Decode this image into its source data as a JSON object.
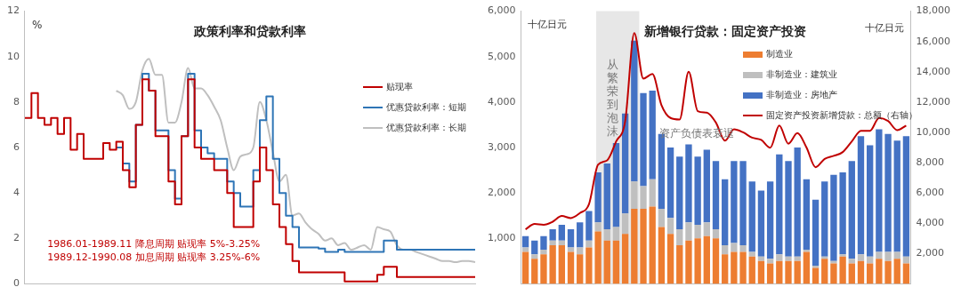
{
  "chart_data": [
    {
      "type": "step",
      "title": "政策利率和贷款利率",
      "ylabel": "%",
      "categories": [
        null,
        null,
        null,
        null,
        null,
        null,
        null,
        null,
        null,
        null,
        null,
        null,
        null,
        null,
        null,
        null,
        null,
        null,
        null,
        null,
        null,
        null,
        null,
        null,
        null,
        null,
        null,
        null,
        null,
        null,
        null,
        null,
        null,
        null,
        null,
        null,
        null,
        null,
        null,
        null,
        null,
        null,
        null,
        null,
        null,
        null,
        null,
        null,
        null,
        null,
        null,
        null,
        null,
        null,
        null,
        null,
        null,
        null,
        null,
        null,
        null,
        null,
        null,
        null,
        null,
        null,
        null,
        null,
        null,
        null
      ],
      "series": [
        {
          "name": "贴现率",
          "color": "#c00000",
          "values": [
            7.3,
            8.4,
            7.3,
            7.0,
            7.3,
            6.6,
            7.3,
            5.9,
            6.6,
            5.5,
            5.5,
            5.5,
            6.2,
            5.9,
            6.25,
            5.0,
            4.25,
            7.0,
            9.0,
            8.5,
            6.5,
            6.5,
            4.5,
            3.5,
            6.5,
            9.0,
            6.0,
            5.5,
            5.5,
            5.0,
            5.0,
            4.0,
            2.5,
            2.5,
            2.5,
            4.5,
            6.0,
            5.0,
            3.5,
            2.5,
            1.75,
            1.0,
            0.5,
            0.5,
            0.5,
            0.5,
            0.5,
            0.5,
            0.5,
            0.1,
            0.1,
            0.1,
            0.1,
            0.1,
            0.4,
            0.75,
            0.75,
            0.3,
            0.3,
            0.3,
            0.3,
            0.3,
            0.3,
            0.3,
            0.3,
            0.3,
            0.3,
            0.3,
            0.3,
            0.3
          ]
        },
        {
          "name": "优惠贷款利率：短期",
          "color": "#2e75b6",
          "values": [
            null,
            null,
            null,
            null,
            null,
            null,
            null,
            null,
            null,
            null,
            null,
            null,
            null,
            null,
            6.0,
            5.3,
            4.5,
            7.0,
            9.25,
            8.5,
            6.75,
            6.75,
            5.0,
            3.75,
            6.5,
            9.25,
            6.75,
            6.0,
            5.75,
            5.5,
            5.5,
            4.5,
            4.0,
            3.4,
            3.4,
            5.0,
            7.2,
            8.25,
            5.5,
            4.0,
            3.0,
            2.5,
            1.6,
            1.6,
            1.6,
            1.55,
            1.4,
            1.4,
            1.5,
            1.4,
            1.4,
            1.4,
            1.4,
            1.4,
            1.4,
            1.9,
            1.9,
            1.5,
            1.5,
            1.5,
            1.5,
            1.5,
            1.5,
            1.5,
            1.5,
            1.5,
            1.5,
            1.5,
            1.5,
            1.5
          ]
        },
        {
          "name": "优惠贷款利率：长期",
          "type": "line",
          "color": "#bfbfbf",
          "values": [
            null,
            null,
            null,
            null,
            null,
            null,
            null,
            null,
            null,
            null,
            null,
            null,
            null,
            null,
            8.5,
            8.3,
            7.7,
            8.0,
            9.4,
            9.9,
            9.2,
            9.2,
            7.1,
            7.1,
            8.0,
            9.5,
            8.6,
            8.6,
            8.3,
            7.8,
            7.2,
            6.0,
            5.0,
            5.6,
            5.7,
            6.0,
            8.0,
            7.2,
            5.8,
            4.5,
            4.8,
            3.0,
            3.1,
            2.7,
            2.4,
            2.2,
            1.9,
            2.0,
            1.7,
            1.8,
            1.5,
            1.6,
            1.7,
            1.5,
            2.5,
            2.4,
            2.3,
            1.7,
            1.5,
            1.5,
            1.4,
            1.3,
            1.2,
            1.1,
            1.0,
            1.0,
            0.95,
            1.0,
            1.0,
            0.95
          ]
        }
      ],
      "ylim": [
        0,
        12
      ],
      "yticks": [
        0,
        2,
        4,
        6,
        8,
        10,
        12
      ],
      "grid": false,
      "legend": "right",
      "marker": "none",
      "annotations": [
        "1986.01-1989.11 降息周期 贴现率 5%-3.25%",
        "1989.12-1990.08 加息周期 贴现率 3.25%-6%"
      ]
    },
    {
      "type": "bar",
      "title": "新增银行贷款：固定资产投资",
      "ylabel": "十亿日元",
      "y2label": "十亿日元",
      "stacked": true,
      "categories": [
        null,
        null,
        null,
        null,
        null,
        null,
        null,
        null,
        null,
        null,
        null,
        null,
        null,
        null,
        null,
        null,
        null,
        null,
        null,
        null,
        null,
        null,
        null,
        null,
        null,
        null,
        null,
        null,
        null,
        null,
        null,
        null,
        null,
        null,
        null,
        null,
        null,
        null,
        null,
        null,
        null,
        null,
        null
      ],
      "series": [
        {
          "name": "制造业",
          "color": "#ed7d31",
          "values": [
            700,
            550,
            650,
            850,
            850,
            700,
            650,
            800,
            1150,
            950,
            950,
            1100,
            1650,
            1650,
            1700,
            1250,
            1100,
            850,
            950,
            1000,
            1050,
            1000,
            650,
            700,
            700,
            600,
            500,
            450,
            500,
            500,
            500,
            700,
            350,
            550,
            450,
            600,
            450,
            500,
            450,
            550,
            500,
            550,
            450
          ]
        },
        {
          "name": "非制造业：建筑业",
          "color": "#bfbfbf",
          "values": [
            100,
            100,
            100,
            100,
            100,
            100,
            150,
            150,
            200,
            250,
            300,
            450,
            600,
            500,
            600,
            400,
            350,
            350,
            400,
            300,
            300,
            200,
            200,
            200,
            150,
            100,
            100,
            100,
            150,
            100,
            100,
            50,
            50,
            50,
            50,
            50,
            100,
            150,
            150,
            150,
            200,
            150,
            150
          ]
        },
        {
          "name": "非制造业：房地产",
          "color": "#4472c4",
          "values": [
            250,
            300,
            300,
            250,
            350,
            400,
            550,
            650,
            1100,
            1450,
            1850,
            2200,
            3100,
            2050,
            1950,
            1650,
            1550,
            1600,
            1720,
            1500,
            1600,
            1500,
            1450,
            1800,
            1850,
            1550,
            1450,
            1700,
            2200,
            2100,
            2400,
            1550,
            1450,
            1650,
            1900,
            1800,
            2150,
            2600,
            2450,
            2700,
            2600,
            2450,
            2650
          ]
        },
        {
          "name": "固定资产投资新增贷款：总额（右轴）",
          "type": "line",
          "axis": "y2",
          "color": "#c00000",
          "values": [
            3600,
            3950,
            3900,
            4100,
            4480,
            4340,
            4670,
            5250,
            7860,
            8150,
            9400,
            10750,
            16550,
            13550,
            13850,
            11800,
            10950,
            10850,
            14000,
            11400,
            11300,
            10650,
            9450,
            10200,
            10000,
            9650,
            9500,
            8980,
            10450,
            9250,
            9950,
            9000,
            7700,
            8250,
            8450,
            8700,
            9400,
            10100,
            10100,
            10950,
            10750,
            10150,
            10450
          ]
        }
      ],
      "ylim": [
        0,
        6000
      ],
      "yticks": [
        {
          "value": 1000,
          "label": "1,000"
        },
        {
          "value": 2000,
          "label": "2,000"
        },
        {
          "value": 3000,
          "label": "3,000"
        },
        {
          "value": 4000,
          "label": "4,000"
        },
        {
          "value": 5000,
          "label": "5,000"
        },
        {
          "value": 6000,
          "label": "6,000"
        }
      ],
      "y2lim": [
        0,
        18000
      ],
      "y2ticks": [
        {
          "value": 2000,
          "label": "2,000"
        },
        {
          "value": 4000,
          "label": "4,000"
        },
        {
          "value": 6000,
          "label": "6,000"
        },
        {
          "value": 8000,
          "label": "8,000"
        },
        {
          "value": 10000,
          "label": "10,000"
        },
        {
          "value": 12000,
          "label": "12,000"
        },
        {
          "value": 14000,
          "label": "14,000"
        },
        {
          "value": 16000,
          "label": "16,000"
        },
        {
          "value": 18000,
          "label": "18,000"
        }
      ],
      "grid": false,
      "legend": "top right",
      "marker": "none",
      "annotations": [
        "从繁荣到泡沫",
        "资产负债表衰退"
      ]
    }
  ]
}
